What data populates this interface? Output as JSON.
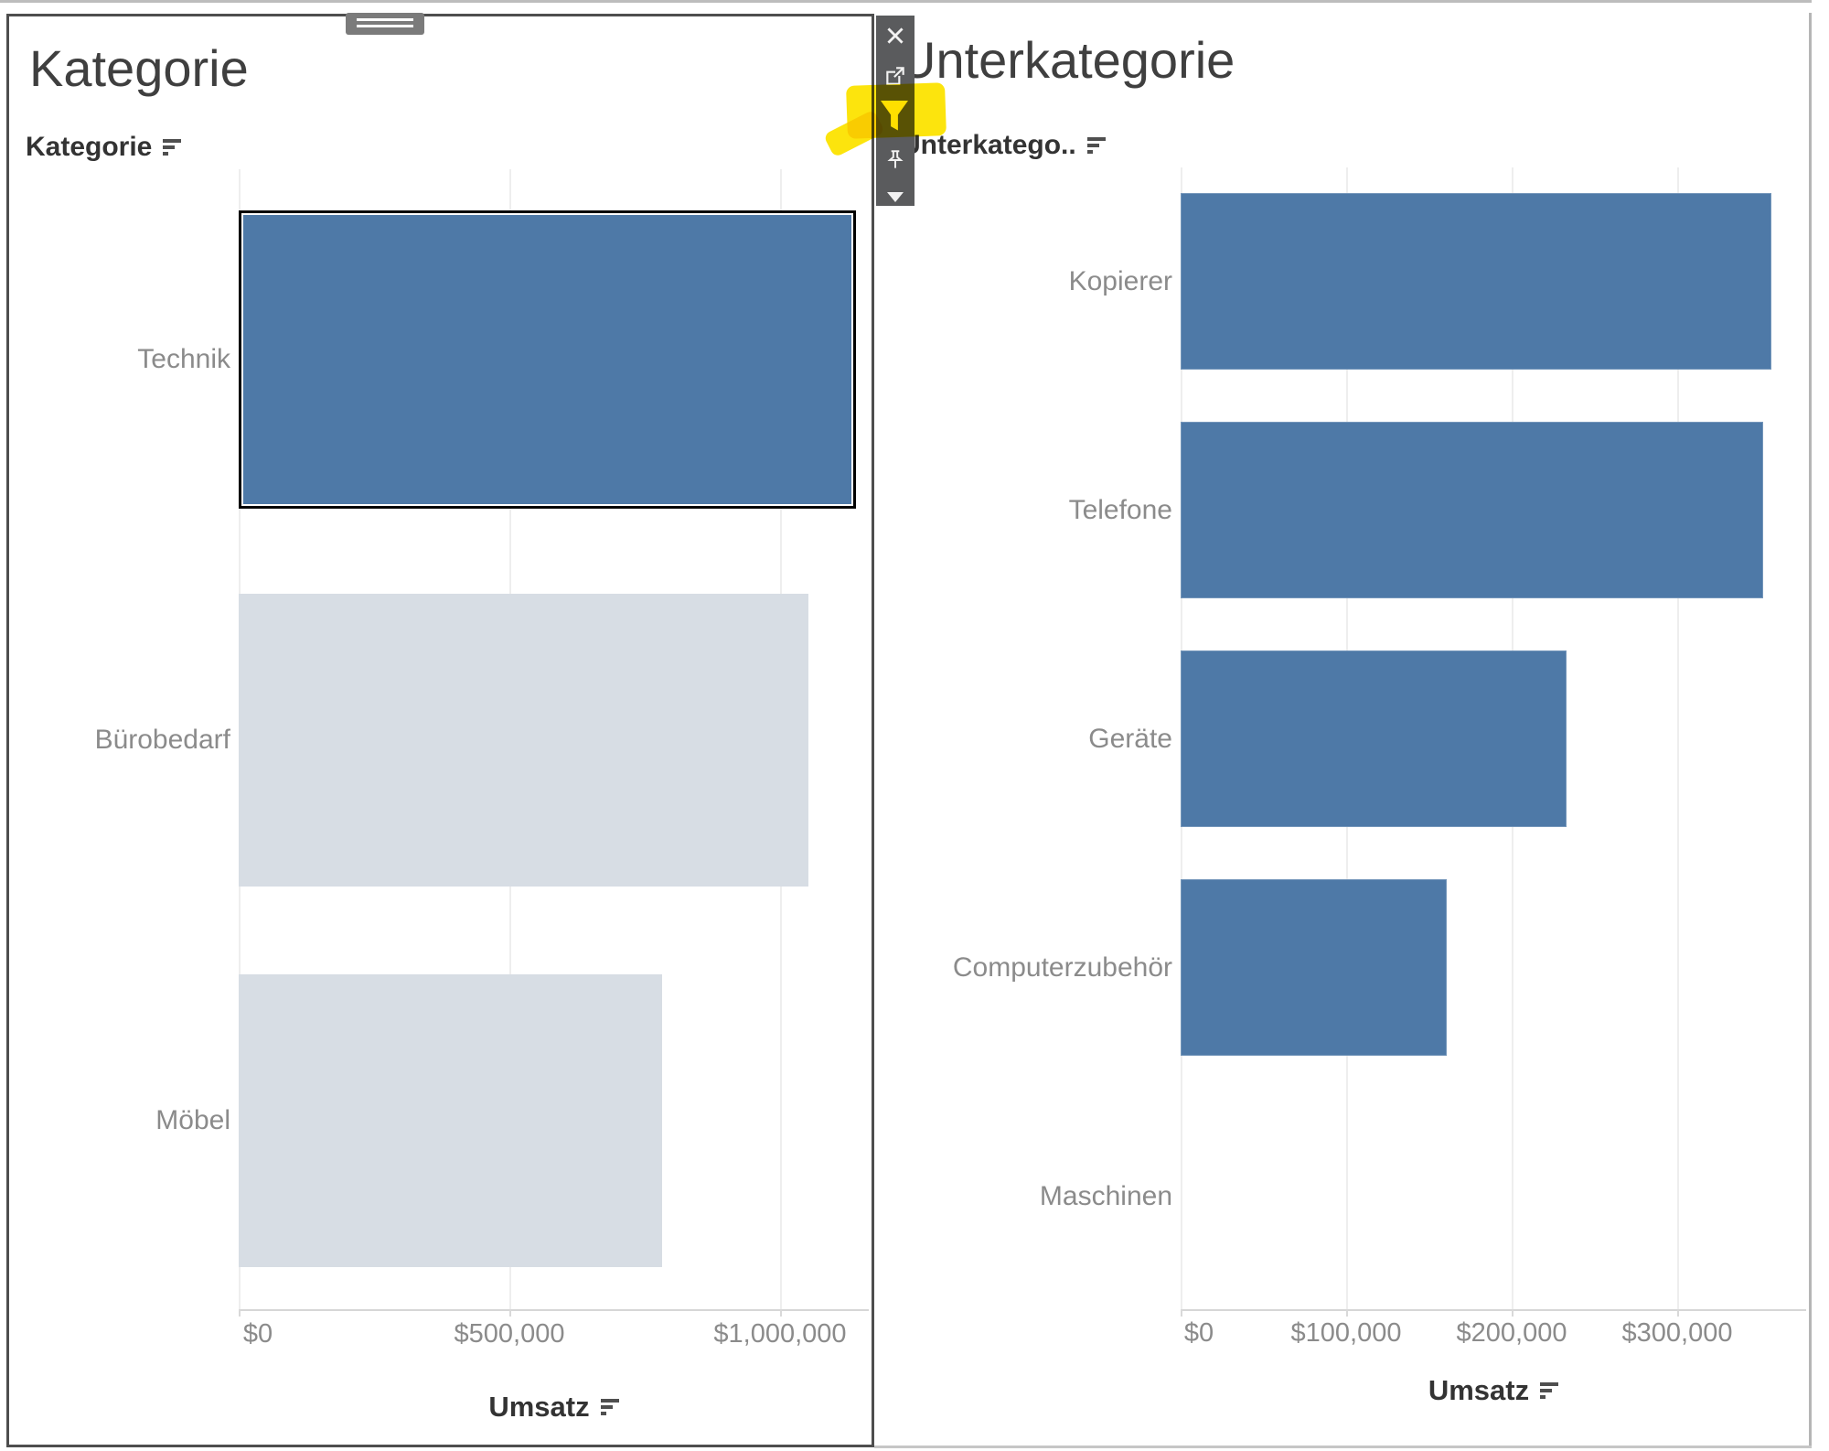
{
  "left_panel": {
    "title": "Kategorie",
    "field_header": "Kategorie",
    "axis_title": "Umsatz"
  },
  "right_panel": {
    "title": "Unterkategorie",
    "field_header": "Unterkatego..",
    "axis_title": "Umsatz"
  },
  "toolbar": {
    "icons": [
      "close",
      "open-in-new-window",
      "filter",
      "pin",
      "dropdown-caret"
    ],
    "active_icon": "filter"
  },
  "chart_data": [
    {
      "type": "bar",
      "orientation": "horizontal",
      "title": "Kategorie",
      "xlabel": "Umsatz",
      "categories": [
        "Technik",
        "Bürobedarf",
        "Möbel"
      ],
      "values": [
        1140000,
        1052000,
        782000
      ],
      "selected_category": "Technik",
      "tick_labels": [
        "$0",
        "$500,000",
        "$1,000,000"
      ],
      "tick_values": [
        0,
        500000,
        1000000
      ],
      "xlim": [
        0,
        1164000
      ],
      "sort": "descending",
      "grid": "vertical-only",
      "legend": "none"
    },
    {
      "type": "bar",
      "orientation": "horizontal",
      "title": "Unterkategorie",
      "xlabel": "Umsatz",
      "categories": [
        "Kopierer",
        "Telefone",
        "Geräte",
        "Computerzubehör",
        "Maschinen"
      ],
      "values": [
        357000,
        352000,
        233000,
        161000,
        0
      ],
      "tick_labels": [
        "$0",
        "$100,000",
        "$200,000",
        "$300,000"
      ],
      "tick_values": [
        0,
        100000,
        200000,
        300000
      ],
      "xlim": [
        0,
        377000
      ],
      "sort": "descending",
      "grid": "vertical-only",
      "legend": "none"
    }
  ],
  "colors": {
    "bar_selected_blue": "#4e79a7",
    "bar_unselected_grey": "#d7dde4",
    "highlight_yellow": "#fce300",
    "toolbar_grey": "#5a5b5d",
    "panel_border_dark": "#4e4e4e",
    "dashboard_border_grey": "#bdbdbd",
    "label_grey": "#8b8b8b",
    "header_dark": "#333333"
  }
}
